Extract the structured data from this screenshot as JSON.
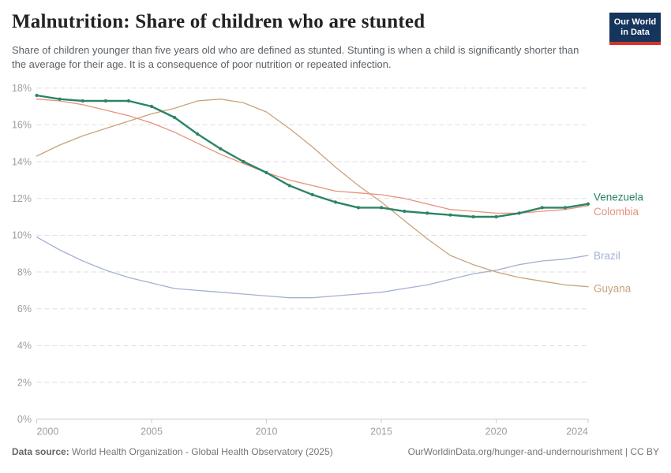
{
  "header": {
    "title": "Malnutrition: Share of children who are stunted",
    "subtitle": "Share of children younger than five years old who are defined as stunted. Stunting is when a child is significantly shorter than the average for their age. It is a consequence of poor nutrition or repeated infection.",
    "logo": {
      "line1": "Our World",
      "line2": "in Data"
    }
  },
  "footer": {
    "datasource_label": "Data source:",
    "datasource_text": " World Health Organization - Global Health Observatory (2025)",
    "link_text": "OurWorldinData.org/hunger-and-undernourishment | CC BY"
  },
  "colors": {
    "logo_navy": "#15355c",
    "logo_red": "#d1342b",
    "gridline": "#dedede",
    "axis_line": "#c9c9c9",
    "tick_text": "#9a9fa5"
  },
  "chart_data": {
    "type": "line",
    "title": "Malnutrition: Share of children who are stunted",
    "xlabel": "",
    "ylabel": "",
    "ylim": [
      0,
      18
    ],
    "yticks": [
      0,
      2,
      4,
      6,
      8,
      10,
      12,
      14,
      16,
      18
    ],
    "ytick_suffix": "%",
    "xticks": [
      2000,
      2005,
      2010,
      2015,
      2020,
      2024
    ],
    "grid": true,
    "legend_position": "right-line-end-labels",
    "x": [
      2000,
      2001,
      2002,
      2003,
      2004,
      2005,
      2006,
      2007,
      2008,
      2009,
      2010,
      2011,
      2012,
      2013,
      2014,
      2015,
      2016,
      2017,
      2018,
      2019,
      2020,
      2021,
      2022,
      2023,
      2024
    ],
    "series": [
      {
        "name": "Venezuela",
        "color": "#2c8465",
        "focused": true,
        "label_dy": -9,
        "values": [
          17.6,
          17.4,
          17.3,
          17.3,
          17.3,
          17.0,
          16.4,
          15.5,
          14.7,
          14.0,
          13.4,
          12.7,
          12.2,
          11.8,
          11.5,
          11.5,
          11.3,
          11.2,
          11.1,
          11.0,
          11.0,
          11.2,
          11.5,
          11.5,
          11.7
        ]
      },
      {
        "name": "Colombia",
        "color": "#e5937d",
        "focused": false,
        "label_dy": 7,
        "values": [
          17.4,
          17.3,
          17.1,
          16.8,
          16.5,
          16.1,
          15.6,
          15.0,
          14.4,
          13.9,
          13.4,
          13.0,
          12.7,
          12.4,
          12.3,
          12.2,
          12.0,
          11.7,
          11.4,
          11.3,
          11.2,
          11.2,
          11.3,
          11.4,
          11.6
        ]
      },
      {
        "name": "Brazil",
        "color": "#a5b0d4",
        "focused": false,
        "label_dy": 0,
        "values": [
          9.9,
          9.2,
          8.6,
          8.1,
          7.7,
          7.4,
          7.1,
          7.0,
          6.9,
          6.8,
          6.7,
          6.6,
          6.6,
          6.7,
          6.8,
          6.9,
          7.1,
          7.3,
          7.6,
          7.9,
          8.1,
          8.4,
          8.6,
          8.7,
          8.9
        ]
      },
      {
        "name": "Guyana",
        "color": "#c8a37c",
        "focused": false,
        "label_dy": 2,
        "values": [
          14.3,
          14.9,
          15.4,
          15.8,
          16.2,
          16.6,
          16.9,
          17.3,
          17.4,
          17.2,
          16.7,
          15.8,
          14.8,
          13.7,
          12.7,
          11.8,
          10.8,
          9.8,
          8.9,
          8.4,
          8.0,
          7.7,
          7.5,
          7.3,
          7.2
        ]
      }
    ]
  }
}
